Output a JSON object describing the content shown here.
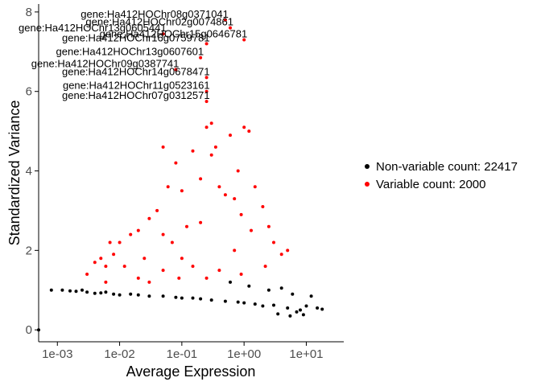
{
  "chart_data": {
    "type": "scatter",
    "xlabel": "Average Expression",
    "ylabel": "Standardized Variance",
    "x_scale": "log10",
    "xlim": [
      0.0005,
      40
    ],
    "ylim": [
      -0.3,
      8.2
    ],
    "x_ticks": [
      {
        "value": 0.001,
        "label": "1e-03"
      },
      {
        "value": 0.01,
        "label": "1e-02"
      },
      {
        "value": 0.1,
        "label": "1e-01"
      },
      {
        "value": 1,
        "label": "1e+00"
      },
      {
        "value": 10,
        "label": "1e+01"
      }
    ],
    "y_ticks": [
      0,
      2,
      4,
      6,
      8
    ],
    "grid": false,
    "legend_position": "right",
    "series": [
      {
        "name": "Non-variable count: 22417",
        "color": "#000000",
        "points": [
          [
            0.0005,
            0.0
          ],
          [
            0.0008,
            1.0
          ],
          [
            0.0012,
            1.0
          ],
          [
            0.0016,
            0.98
          ],
          [
            0.002,
            0.97
          ],
          [
            0.0025,
            1.0
          ],
          [
            0.003,
            0.95
          ],
          [
            0.004,
            0.92
          ],
          [
            0.005,
            0.93
          ],
          [
            0.006,
            0.95
          ],
          [
            0.008,
            0.9
          ],
          [
            0.01,
            0.88
          ],
          [
            0.015,
            0.9
          ],
          [
            0.02,
            0.88
          ],
          [
            0.03,
            0.85
          ],
          [
            0.05,
            0.85
          ],
          [
            0.08,
            0.82
          ],
          [
            0.1,
            0.8
          ],
          [
            0.15,
            0.8
          ],
          [
            0.2,
            0.78
          ],
          [
            0.3,
            0.75
          ],
          [
            0.5,
            0.72
          ],
          [
            0.8,
            0.7
          ],
          [
            1.0,
            0.68
          ],
          [
            1.5,
            0.65
          ],
          [
            2.0,
            0.6
          ],
          [
            3.0,
            0.62
          ],
          [
            5.0,
            0.55
          ],
          [
            8.0,
            0.5
          ],
          [
            10.0,
            0.6
          ],
          [
            15.0,
            0.55
          ],
          [
            18.0,
            0.52
          ],
          [
            0.6,
            1.2
          ],
          [
            1.2,
            1.1
          ],
          [
            2.5,
            1.0
          ],
          [
            4.0,
            1.05
          ],
          [
            6.0,
            0.9
          ],
          [
            12.0,
            0.85
          ],
          [
            3.5,
            0.4
          ],
          [
            5.5,
            0.35
          ],
          [
            7.0,
            0.45
          ],
          [
            9.0,
            0.38
          ]
        ]
      },
      {
        "name": "Variable count: 2000",
        "color": "#ff0000",
        "points": [
          [
            0.003,
            1.4
          ],
          [
            0.004,
            1.7
          ],
          [
            0.005,
            1.8
          ],
          [
            0.006,
            1.6
          ],
          [
            0.007,
            2.2
          ],
          [
            0.008,
            1.9
          ],
          [
            0.01,
            2.2
          ],
          [
            0.012,
            1.6
          ],
          [
            0.015,
            2.4
          ],
          [
            0.02,
            2.5
          ],
          [
            0.025,
            1.8
          ],
          [
            0.03,
            2.8
          ],
          [
            0.04,
            3.0
          ],
          [
            0.05,
            2.4
          ],
          [
            0.06,
            3.6
          ],
          [
            0.07,
            2.2
          ],
          [
            0.08,
            4.2
          ],
          [
            0.1,
            3.5
          ],
          [
            0.12,
            2.6
          ],
          [
            0.15,
            4.5
          ],
          [
            0.2,
            3.8
          ],
          [
            0.25,
            5.1
          ],
          [
            0.3,
            5.2
          ],
          [
            0.35,
            4.6
          ],
          [
            0.4,
            3.6
          ],
          [
            0.5,
            3.4
          ],
          [
            0.6,
            4.9
          ],
          [
            0.8,
            4.0
          ],
          [
            1.0,
            5.1
          ],
          [
            1.2,
            5.0
          ],
          [
            1.5,
            3.6
          ],
          [
            2.0,
            3.1
          ],
          [
            2.5,
            2.6
          ],
          [
            3.0,
            2.2
          ],
          [
            4.0,
            1.9
          ],
          [
            5.0,
            2.0
          ],
          [
            0.05,
            4.6
          ],
          [
            0.3,
            4.4
          ],
          [
            0.7,
            3.3
          ],
          [
            0.9,
            2.9
          ],
          [
            1.3,
            2.5
          ],
          [
            2.2,
            1.6
          ],
          [
            0.02,
            1.3
          ],
          [
            0.05,
            1.5
          ],
          [
            0.15,
            1.6
          ],
          [
            0.4,
            1.5
          ],
          [
            0.9,
            1.4
          ],
          [
            0.2,
            2.7
          ],
          [
            0.1,
            1.8
          ],
          [
            0.7,
            2.0
          ],
          [
            0.006,
            1.2
          ],
          [
            0.03,
            1.2
          ],
          [
            0.09,
            1.3
          ],
          [
            0.25,
            1.3
          ]
        ]
      }
    ],
    "labeled_genes": [
      {
        "name": "gene:Ha412HOChr13g0605441",
        "x": 0.05,
        "y": 7.45
      },
      {
        "name": "gene:Ha412HOChr13g0607601",
        "x": 0.2,
        "y": 6.85
      },
      {
        "name": "gene:Ha412HOChr09g0387741",
        "x": 0.08,
        "y": 6.55
      },
      {
        "name": "gene:Ha412HOChr14g0678471",
        "x": 0.25,
        "y": 6.35
      },
      {
        "name": "gene:Ha412HOChr11g0523161",
        "x": 0.25,
        "y": 6.0
      },
      {
        "name": "gene:Ha412HOChr07g0312571",
        "x": 0.25,
        "y": 5.75
      },
      {
        "name": "gene:Ha412HOChr16g0759781",
        "x": 0.25,
        "y": 7.2
      },
      {
        "name": "gene:Ha412HOChr08g0371041",
        "x": 0.5,
        "y": 7.8
      },
      {
        "name": "gene:Ha412HOChr02g0074861",
        "x": 0.6,
        "y": 7.6
      },
      {
        "name": "gene:Ha412HOChr15g0646781",
        "x": 1.0,
        "y": 7.3
      }
    ]
  }
}
